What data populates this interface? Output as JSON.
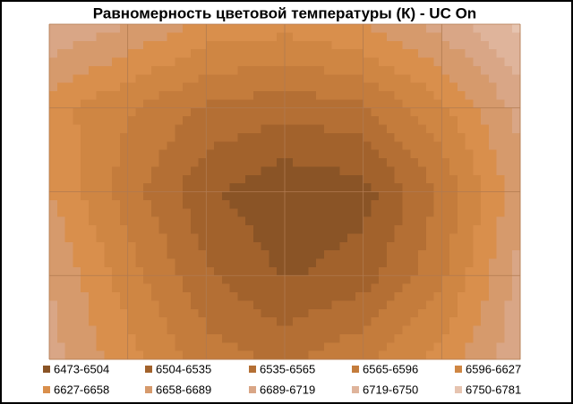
{
  "chart_data": {
    "type": "contour",
    "title": "Равномерность  цветовой температуры (К) - UC On",
    "z": [
      [
        6720,
        6690,
        6650,
        6640,
        6660,
        6700,
        6760
      ],
      [
        6640,
        6600,
        6560,
        6545,
        6560,
        6620,
        6700
      ],
      [
        6660,
        6580,
        6510,
        6480,
        6490,
        6570,
        6680
      ],
      [
        6690,
        6610,
        6540,
        6500,
        6520,
        6590,
        6700
      ],
      [
        6700,
        6640,
        6580,
        6560,
        6590,
        6640,
        6710
      ]
    ],
    "levels": [
      {
        "min": 6473,
        "max": 6504,
        "label": "6473-6504",
        "color": "#8a5426"
      },
      {
        "min": 6504,
        "max": 6535,
        "label": "6504-6535",
        "color": "#a2622c"
      },
      {
        "min": 6535,
        "max": 6565,
        "label": "6535-6565",
        "color": "#b46f34"
      },
      {
        "min": 6565,
        "max": 6596,
        "label": "6565-6596",
        "color": "#c47c3c"
      },
      {
        "min": 6596,
        "max": 6627,
        "label": "6596-6627",
        "color": "#cf8643"
      },
      {
        "min": 6627,
        "max": 6658,
        "label": "6627-6658",
        "color": "#d98f4c"
      },
      {
        "min": 6658,
        "max": 6689,
        "label": "6658-6689",
        "color": "#d69a6c"
      },
      {
        "min": 6689,
        "max": 6719,
        "label": "6689-6719",
        "color": "#d9a686"
      },
      {
        "min": 6719,
        "max": 6750,
        "label": "6719-6750",
        "color": "#dfb49b"
      },
      {
        "min": 6750,
        "max": 6781,
        "label": "6750-6781",
        "color": "#e6c4b0"
      }
    ],
    "grid": true
  }
}
